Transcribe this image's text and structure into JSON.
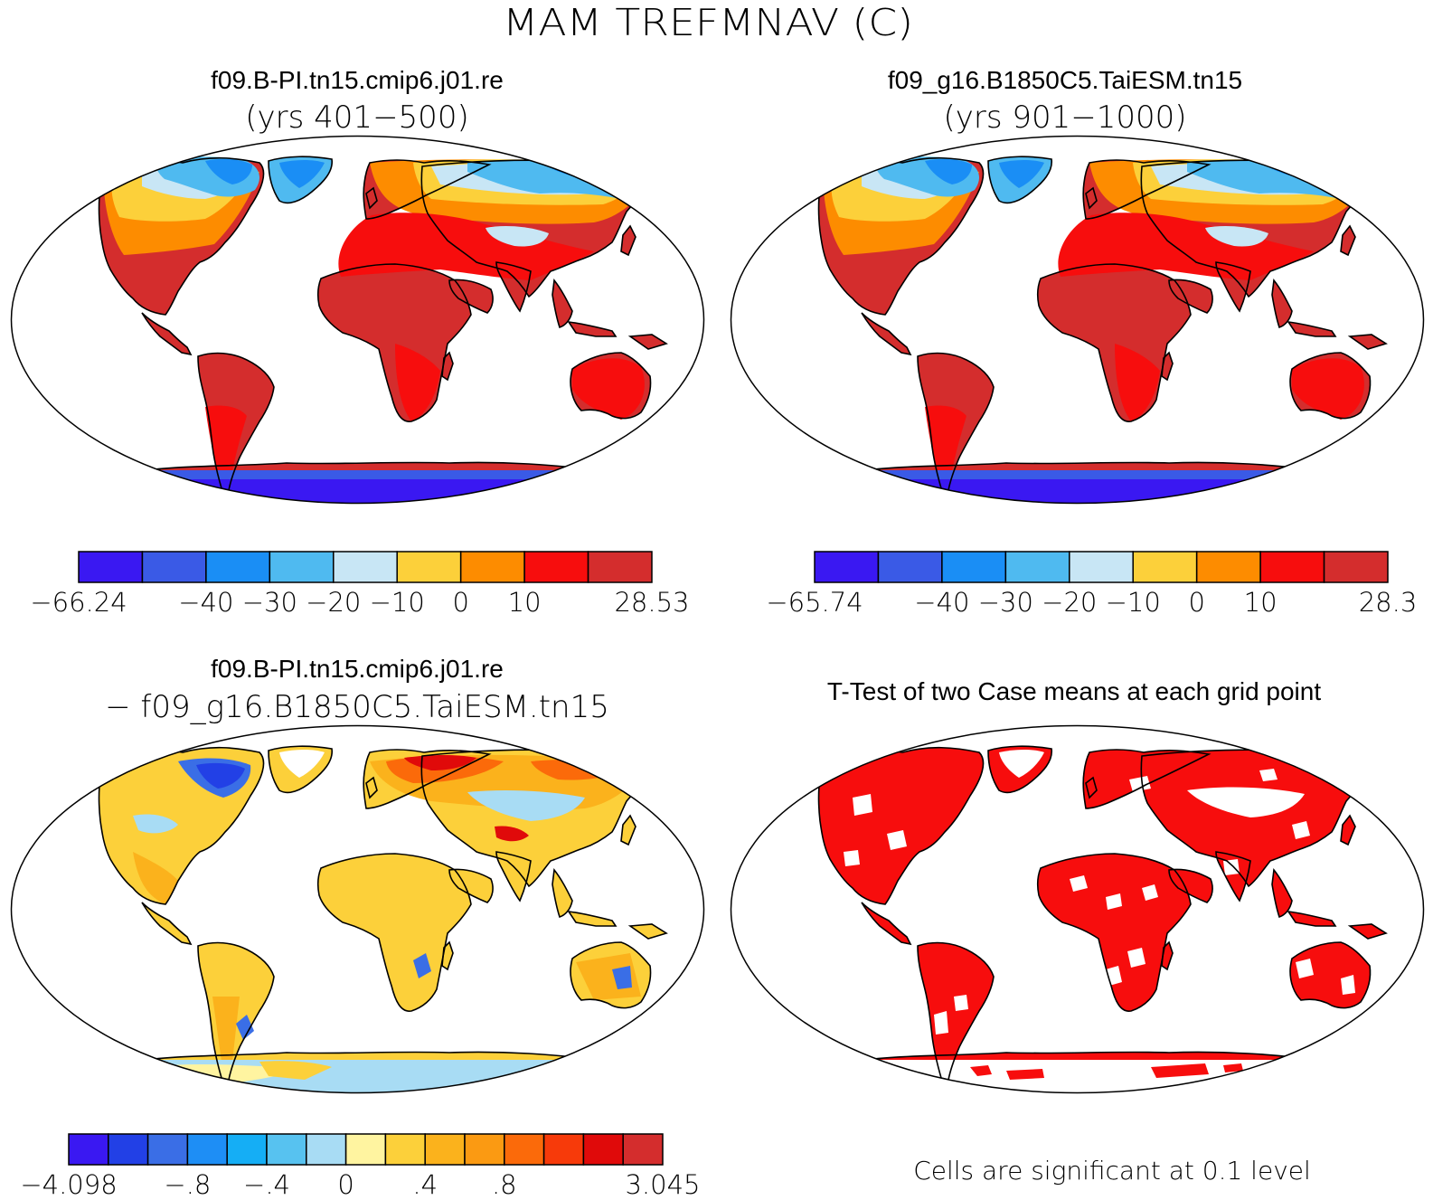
{
  "figure": {
    "title": "MAM TREFMNAV (C)"
  },
  "panels": [
    {
      "id": "case1",
      "title": "f09.B-PI.tn15.cmip6.j01.re",
      "subtitle": "(yrs 401−500)",
      "colorbar": {
        "colors": [
          "#3a18f2",
          "#3a5ae6",
          "#1a8ef5",
          "#4fbaf0",
          "#c8e6f5",
          "#fcd03a",
          "#fd8c00",
          "#f70d0d",
          "#d42d2d"
        ],
        "labels": [
          "−66.24",
          "",
          "−40",
          "−30",
          "−20",
          "−10",
          "0",
          "10",
          "",
          "28.53"
        ]
      }
    },
    {
      "id": "case2",
      "title": "f09_g16.B1850C5.TaiESM.tn15",
      "subtitle": "(yrs 901−1000)",
      "colorbar": {
        "colors": [
          "#3a18f2",
          "#3a5ae6",
          "#1a8ef5",
          "#4fbaf0",
          "#c8e6f5",
          "#fcd03a",
          "#fd8c00",
          "#f70d0d",
          "#d42d2d"
        ],
        "labels": [
          "−65.74",
          "",
          "−40",
          "−30",
          "−20",
          "−10",
          "0",
          "10",
          "",
          "28.3"
        ]
      }
    },
    {
      "id": "diff",
      "title": "f09.B-PI.tn15.cmip6.j01.re",
      "subtitle": "− f09_g16.B1850C5.TaiESM.tn15",
      "colorbar": {
        "colors": [
          "#3a18f2",
          "#2240e6",
          "#3a6ee6",
          "#1e8ef5",
          "#15aef5",
          "#57c2f0",
          "#a8dcf4",
          "#fff4a0",
          "#fcd03a",
          "#fbb21c",
          "#fb9a12",
          "#fb6a0a",
          "#f73a0a",
          "#e00a0a",
          "#d42d2d"
        ],
        "labels": [
          "−4.098",
          "",
          "",
          "−.8",
          "",
          "−.4",
          "",
          "0",
          "",
          ".4",
          "",
          ".8",
          "",
          "",
          "",
          "3.045"
        ]
      }
    },
    {
      "id": "ttest",
      "title": "T-Test of two Case means at each grid point",
      "note": "Cells are significant at 0.1 level",
      "sig_color": "#f70d0d"
    }
  ]
}
